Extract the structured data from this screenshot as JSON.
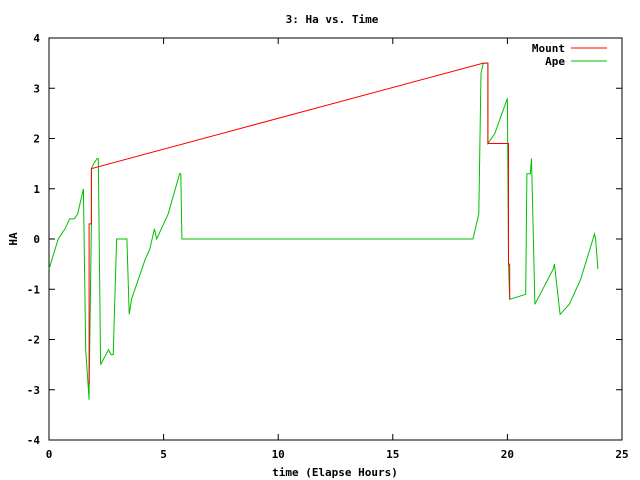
{
  "chart_data": {
    "type": "line",
    "title": "3: Ha vs. Time",
    "xlabel": "time (Elapse Hours)",
    "ylabel": "HA",
    "xlim": [
      0,
      25
    ],
    "ylim": [
      -4,
      4
    ],
    "xticks": [
      0,
      5,
      10,
      15,
      20,
      25
    ],
    "yticks": [
      -4,
      -3,
      -2,
      -1,
      0,
      1,
      2,
      3,
      4
    ],
    "grid": false,
    "legend_position": "top-right",
    "series": [
      {
        "name": "Mount",
        "color": "#ff0000",
        "x": [
          1.75,
          1.75,
          1.85,
          1.85,
          18.95,
          19.15,
          19.15,
          20.05,
          20.05,
          20.1,
          20.1
        ],
        "y": [
          -2.9,
          0.3,
          0.3,
          1.4,
          3.5,
          3.5,
          1.9,
          1.9,
          -0.5,
          -0.5,
          -1.2
        ]
      },
      {
        "name": "Ape",
        "color": "#00c000",
        "x": [
          0.0,
          0.2,
          0.4,
          0.7,
          0.8,
          0.9,
          1.0,
          1.1,
          1.25,
          1.4,
          1.5,
          1.6,
          1.75,
          1.75,
          1.85,
          1.85,
          1.95,
          2.1,
          2.15,
          2.25,
          2.6,
          2.7,
          2.8,
          2.95,
          3.2,
          3.3,
          3.4,
          3.5,
          3.6,
          4.2,
          4.4,
          4.5,
          4.6,
          4.7,
          5.2,
          5.7,
          5.75,
          5.8,
          18.0,
          18.5,
          18.75,
          18.85,
          18.95,
          19.15,
          19.15,
          19.45,
          20.0,
          20.05,
          20.1,
          20.8,
          20.85,
          21.0,
          21.05,
          21.2,
          22.0,
          22.05,
          22.3,
          22.7,
          23.2,
          23.8,
          23.85,
          23.95
        ],
        "y": [
          -0.6,
          -0.3,
          0.0,
          0.2,
          0.3,
          0.4,
          0.4,
          0.4,
          0.5,
          0.8,
          1.0,
          -2.2,
          -3.2,
          -3.0,
          0.3,
          1.4,
          1.5,
          1.6,
          1.6,
          -2.5,
          -2.2,
          -2.3,
          -2.3,
          0.0,
          0.0,
          0.0,
          0.0,
          -1.5,
          -1.2,
          -0.4,
          -0.2,
          0.0,
          0.2,
          0.0,
          0.5,
          1.3,
          1.3,
          0.0,
          0.0,
          0.0,
          0.5,
          3.3,
          3.5,
          3.5,
          1.9,
          2.1,
          2.8,
          -0.5,
          -1.2,
          -1.1,
          1.3,
          1.3,
          1.6,
          -1.3,
          -0.6,
          -0.5,
          -1.5,
          -1.3,
          -0.8,
          0.1,
          0.0,
          -0.6
        ]
      }
    ]
  }
}
